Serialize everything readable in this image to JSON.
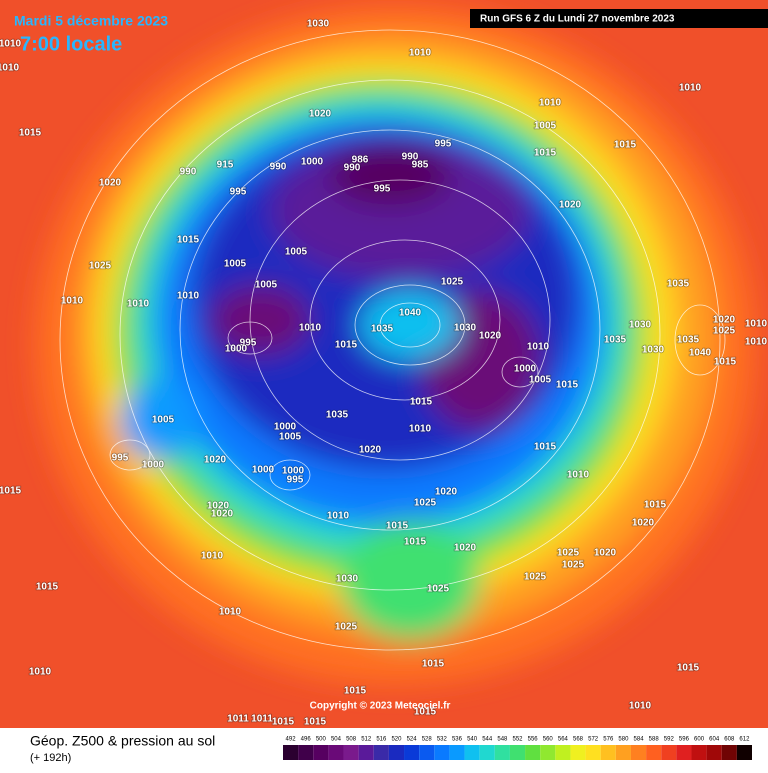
{
  "header": {
    "date": "Mardi 5 décembre 2023",
    "time": "7:00 locale",
    "run": "Run GFS 6 Z du Lundi 27 novembre 2023"
  },
  "map": {
    "pressure_labels": [
      1010,
      1010,
      1030,
      1015,
      1020,
      1015,
      1025,
      1010,
      1010,
      1010,
      1020,
      1010,
      1010,
      1005,
      1015,
      1015,
      1020,
      1010,
      995,
      990,
      985,
      986,
      990,
      990,
      1000,
      995,
      995,
      990,
      915,
      1005,
      1005,
      1005,
      1010,
      1015,
      1035,
      1040,
      1025,
      1030,
      1020,
      1010,
      1000,
      1005,
      1015,
      1035,
      1030,
      1035,
      1030,
      1035,
      1040,
      1020,
      1025,
      1010,
      1010,
      1015,
      995,
      1000,
      1005,
      995,
      1000,
      1020,
      1000,
      1005,
      1035,
      1020,
      1015,
      1010,
      1015,
      1010,
      1000,
      1000,
      995,
      1020,
      1020,
      1010,
      1015,
      1025,
      1020,
      1015,
      1020,
      1025,
      1025,
      1020,
      1015,
      1020,
      1025,
      1030,
      1025,
      1025,
      1010,
      1010,
      1015,
      1010,
      1015,
      1015,
      1015,
      1010,
      1015,
      1015,
      1015,
      1015,
      1011,
      1011
    ],
    "copyright": "Copyright © 2023 Meteociel.fr"
  },
  "footer": {
    "title": "Géop. Z500 & pression au sol",
    "lead": "(+ 192h)",
    "scale": {
      "ticks": [
        492,
        496,
        500,
        504,
        508,
        512,
        516,
        520,
        524,
        528,
        532,
        536,
        540,
        544,
        548,
        552,
        556,
        560,
        564,
        568,
        572,
        576,
        580,
        584,
        588,
        592,
        596,
        600,
        604,
        608,
        612
      ],
      "colors": [
        "#2b0030",
        "#40004a",
        "#560060",
        "#6a0a78",
        "#7a1a8c",
        "#5a1a9a",
        "#3a2aa8",
        "#1a2ac0",
        "#0a3ad8",
        "#0a5af0",
        "#0a7aff",
        "#0a9aff",
        "#10c0f0",
        "#20d8d0",
        "#30e0a0",
        "#40e070",
        "#60e040",
        "#90e830",
        "#c0f020",
        "#f0f020",
        "#ffe020",
        "#ffc020",
        "#ffa020",
        "#ff8020",
        "#ff6020",
        "#f04020",
        "#e02020",
        "#c01010",
        "#a00808",
        "#700404",
        "#100000"
      ]
    }
  }
}
